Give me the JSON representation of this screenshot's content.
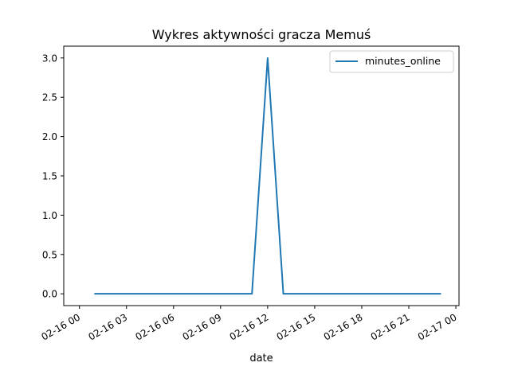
{
  "chart_data": {
    "type": "line",
    "title": "Wykres aktywności gracza Memuś",
    "xlabel": "date",
    "ylabel": "",
    "x": [
      "02-16 01:00",
      "02-16 11:00",
      "02-16 12:00",
      "02-16 13:00",
      "02-16 23:00"
    ],
    "series": [
      {
        "name": "minutes_online",
        "color": "#1f77b4",
        "values": [
          0,
          0,
          3,
          0,
          0
        ]
      }
    ],
    "ylim": [
      -0.15,
      3.15
    ],
    "xlim_hours": [
      -1.0,
      24.2
    ],
    "y_ticks": [
      {
        "value": 0.0,
        "label": "0.0"
      },
      {
        "value": 0.5,
        "label": "0.5"
      },
      {
        "value": 1.0,
        "label": "1.0"
      },
      {
        "value": 1.5,
        "label": "1.5"
      },
      {
        "value": 2.0,
        "label": "2.0"
      },
      {
        "value": 2.5,
        "label": "2.5"
      },
      {
        "value": 3.0,
        "label": "3.0"
      }
    ],
    "x_ticks": [
      {
        "hours": 0,
        "label": "02-16 00"
      },
      {
        "hours": 3,
        "label": "02-16 03"
      },
      {
        "hours": 6,
        "label": "02-16 06"
      },
      {
        "hours": 9,
        "label": "02-16 09"
      },
      {
        "hours": 12,
        "label": "02-16 12"
      },
      {
        "hours": 15,
        "label": "02-16 15"
      },
      {
        "hours": 18,
        "label": "02-16 18"
      },
      {
        "hours": 21,
        "label": "02-16 21"
      },
      {
        "hours": 24,
        "label": "02-17 00"
      }
    ],
    "grid": false,
    "legend_position": "top-right"
  }
}
